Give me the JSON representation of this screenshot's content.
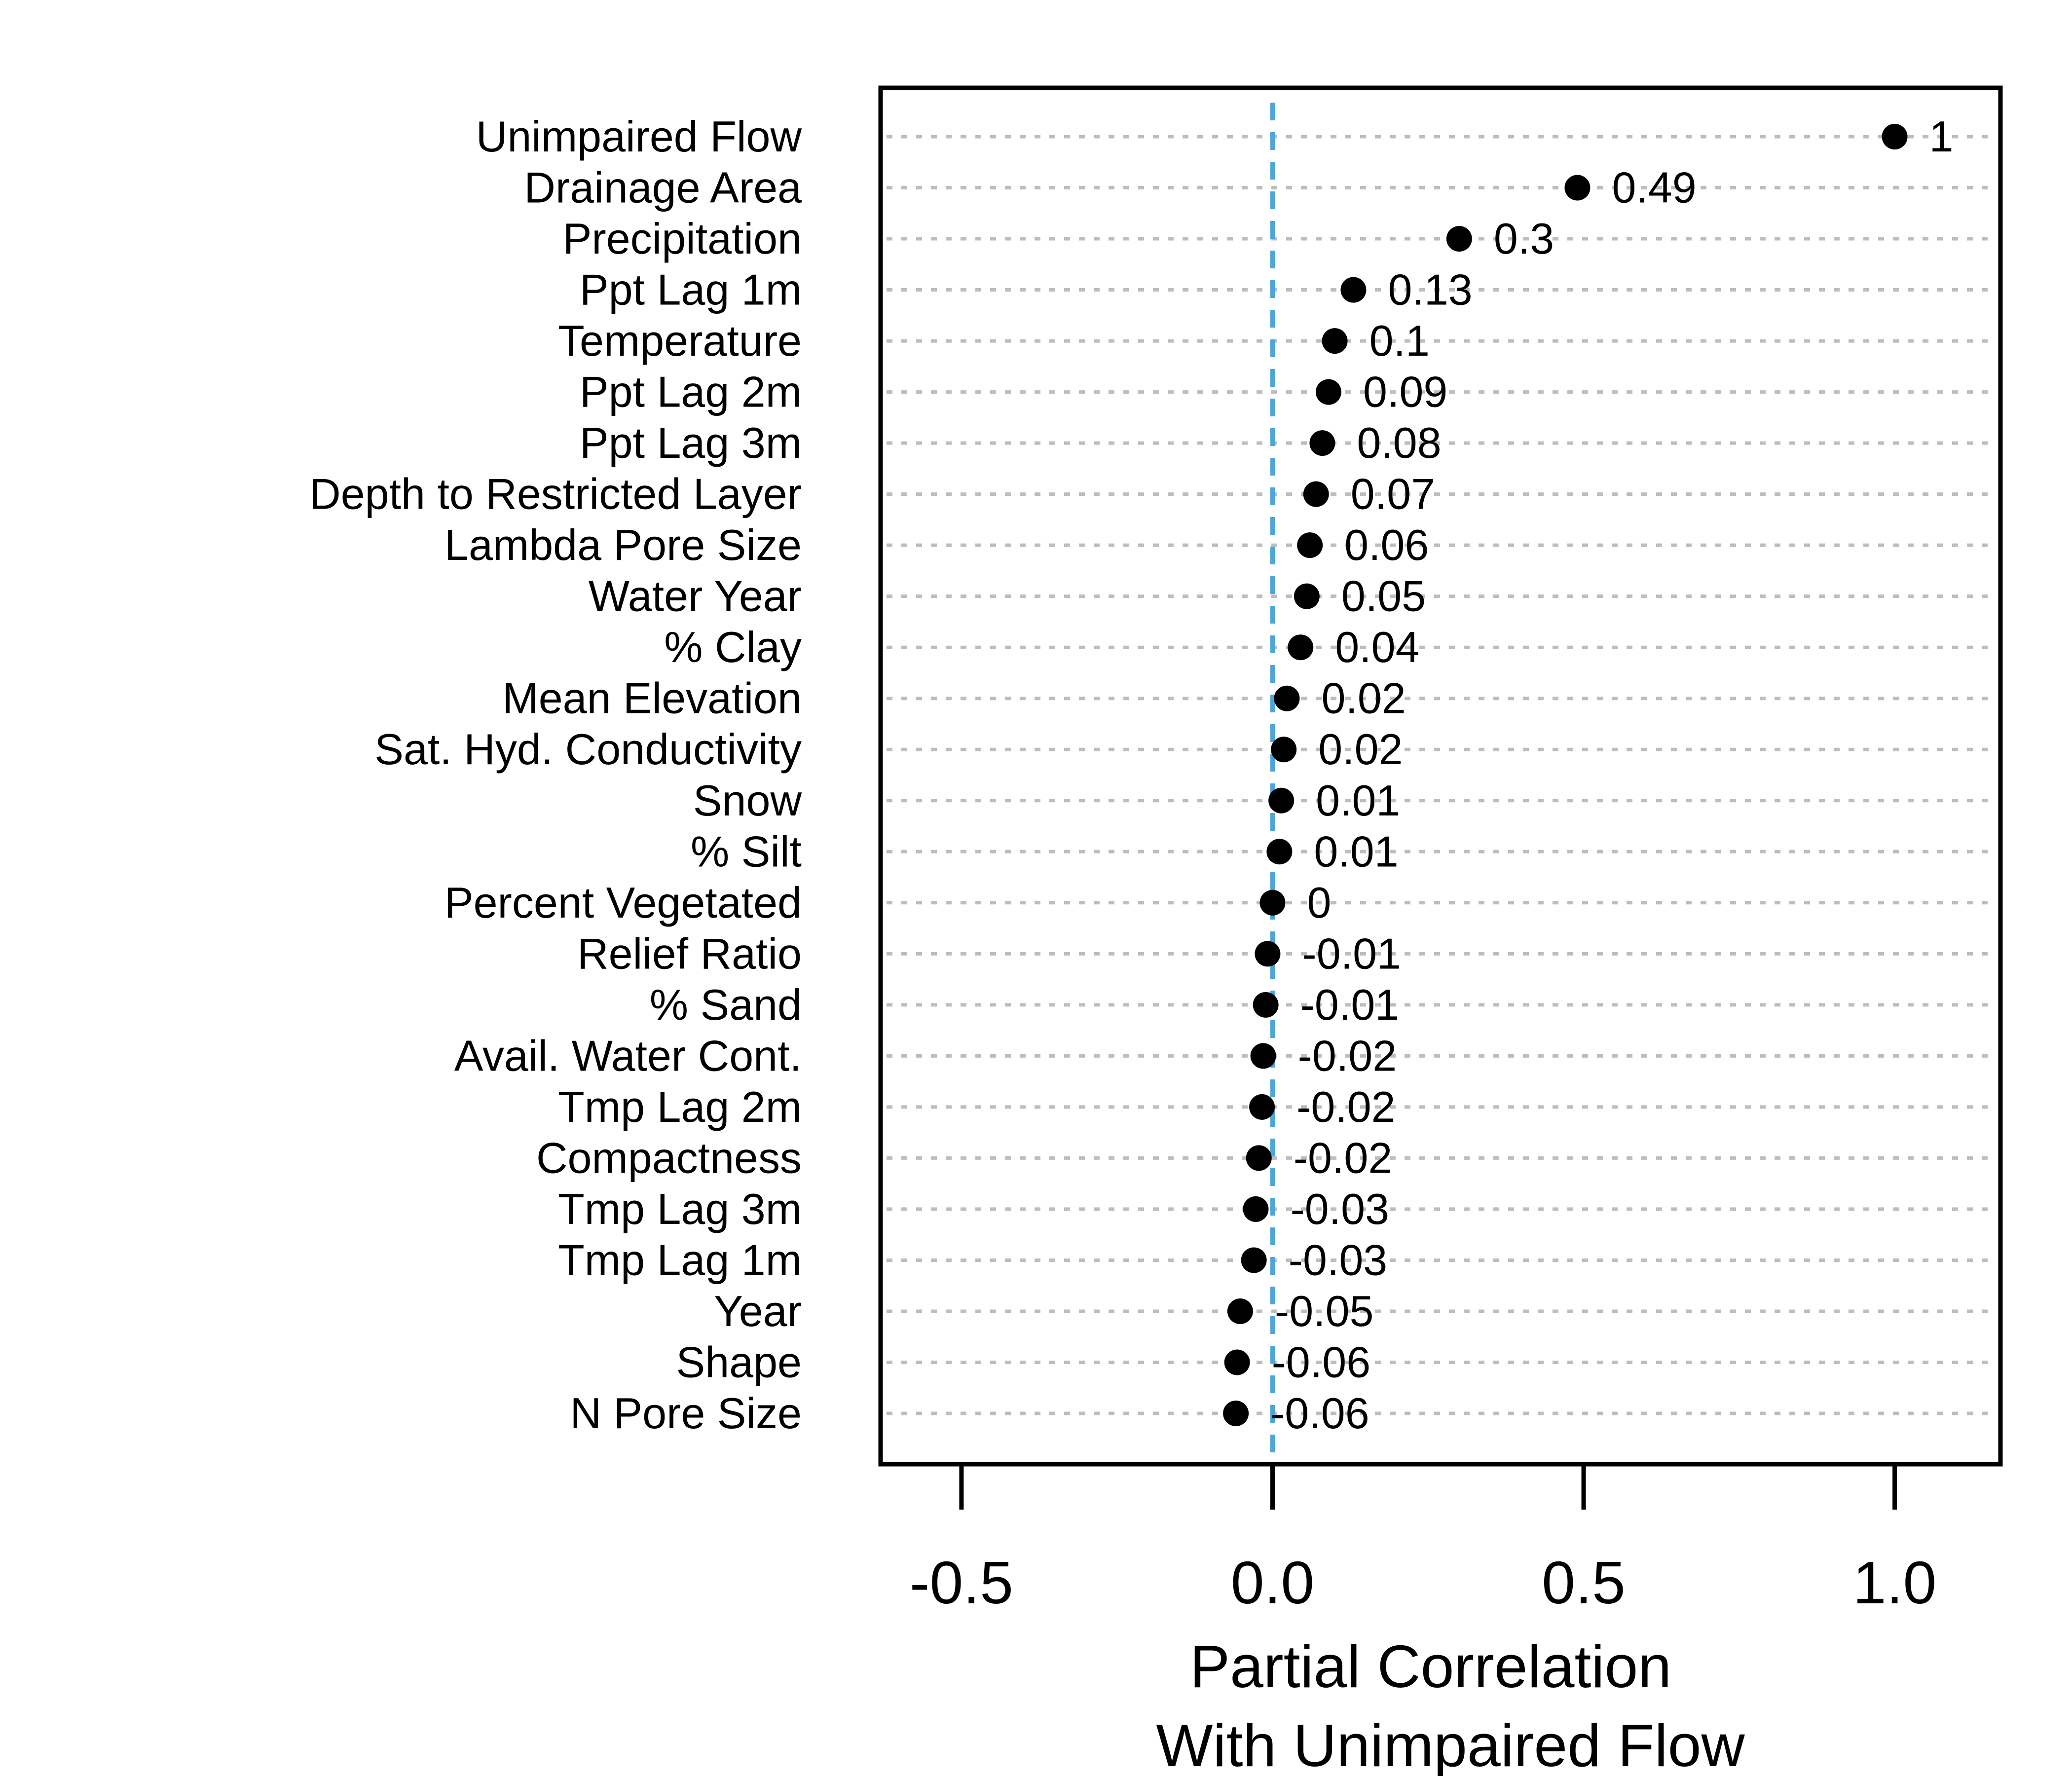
{
  "chart_data": {
    "type": "scatter",
    "subtype": "dot-plot",
    "title": "",
    "xlabel": [
      "Partial Correlation",
      "With Unimpaired Flow"
    ],
    "ylabel": "",
    "xlim": [
      -0.63,
      1.17
    ],
    "xticks": [
      -0.5,
      0.0,
      0.5,
      1.0
    ],
    "xtick_labels": [
      "-0.5",
      "0.0",
      "0.5",
      "1.0"
    ],
    "reference_line": {
      "x": 0,
      "style": "dashed",
      "color": "#4ba6d9"
    },
    "grid": "horizontal dotted lines",
    "point_color": "#000000",
    "categories": [
      "Unimpaired Flow",
      "Drainage Area",
      "Precipitation",
      "Ppt Lag 1m",
      "Temperature",
      "Ppt Lag 2m",
      "Ppt Lag 3m",
      "Depth to Restricted Layer",
      "Lambda Pore Size",
      "Water Year",
      "% Clay",
      "Mean Elevation",
      "Sat. Hyd. Conductivity",
      "Snow",
      "% Silt",
      "Percent Vegetated",
      "Relief Ratio",
      "% Sand",
      "Avail. Water Cont.",
      "Tmp Lag 2m",
      "Compactness",
      "Tmp Lag 3m",
      "Tmp Lag 1m",
      "Year",
      "Shape",
      "N Pore Size"
    ],
    "values": [
      1.0,
      0.49,
      0.3,
      0.13,
      0.1,
      0.09,
      0.08,
      0.07,
      0.06,
      0.055,
      0.045,
      0.023,
      0.018,
      0.014,
      0.011,
      0.0,
      -0.008,
      -0.011,
      -0.015,
      -0.017,
      -0.022,
      -0.027,
      -0.03,
      -0.052,
      -0.057,
      -0.059
    ],
    "value_labels": [
      "1",
      "0.49",
      "0.3",
      "0.13",
      "0.1",
      "0.09",
      "0.08",
      "0.07",
      "0.06",
      "0.05",
      "0.04",
      "0.02",
      "0.02",
      "0.01",
      "0.01",
      "0",
      "-0.01",
      "-0.01",
      "-0.02",
      "-0.02",
      "-0.02",
      "-0.03",
      "-0.03",
      "-0.05",
      "-0.06",
      "-0.06"
    ]
  }
}
